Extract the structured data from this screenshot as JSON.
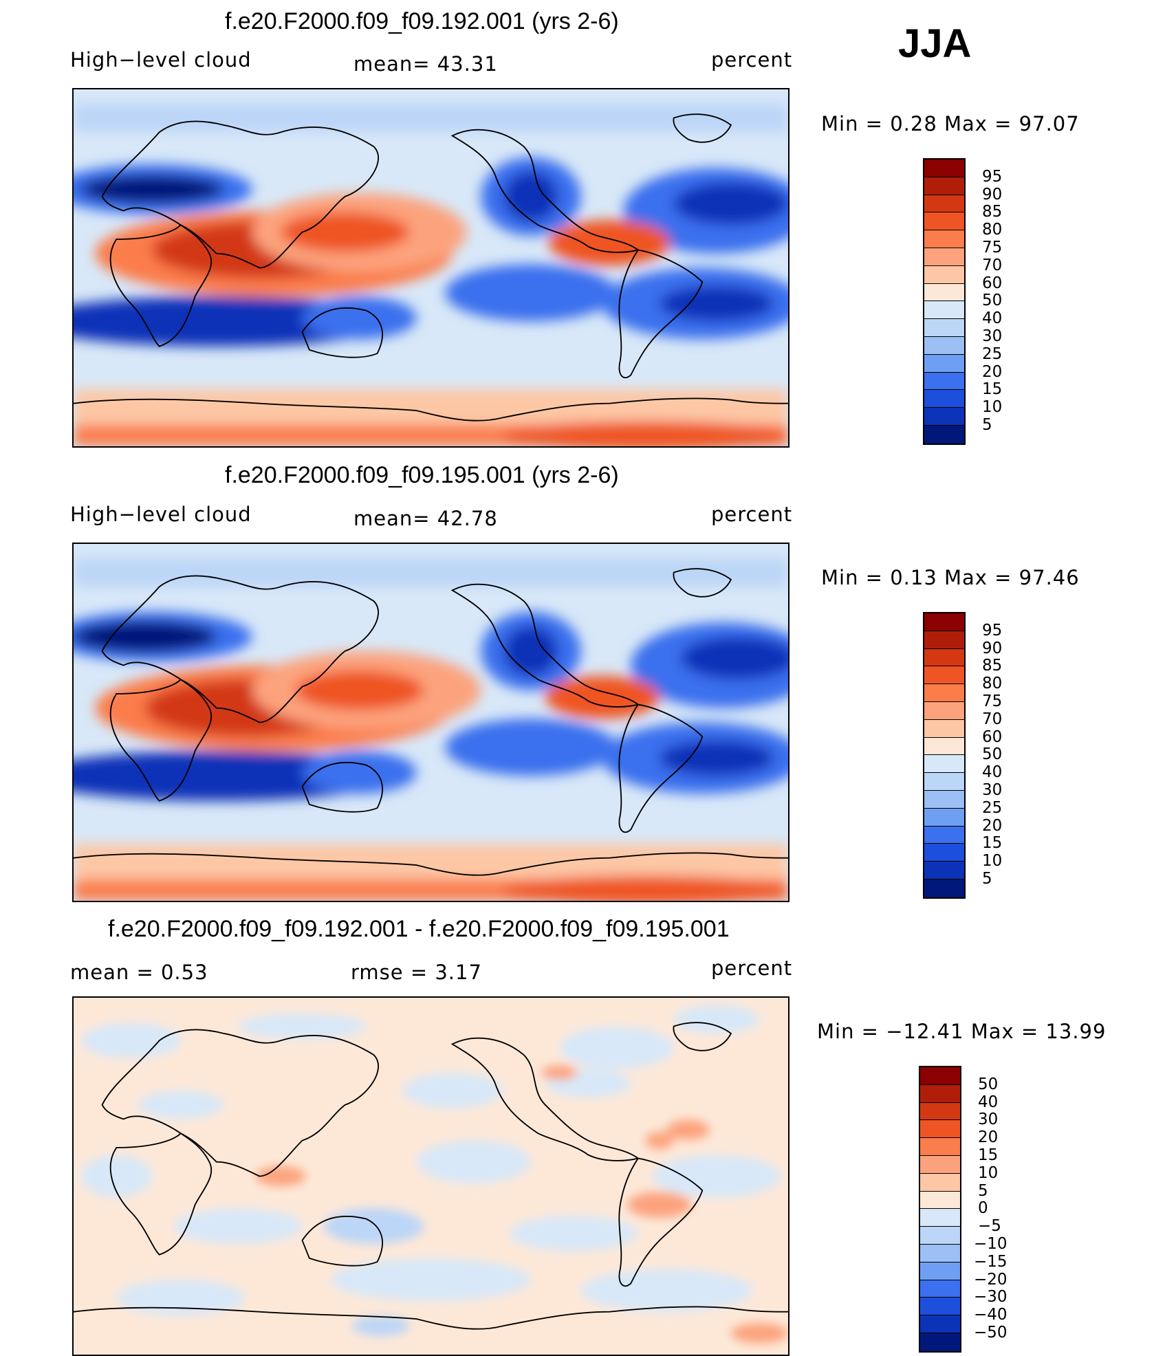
{
  "season": "JJA",
  "panels": [
    {
      "title": "f.e20.F2000.f09_f09.192.001 (yrs 2-6)",
      "left_label": "High−level cloud",
      "center_label": "mean=   43.31",
      "units": "percent",
      "minmax": "Min  =     0.28  Max  =    97.07",
      "palette": "abs"
    },
    {
      "title": "f.e20.F2000.f09_f09.195.001 (yrs 2-6)",
      "left_label": "High−level cloud",
      "center_label": "mean=   42.78",
      "units": "percent",
      "minmax": "Min  =     0.13  Max  =    97.46",
      "palette": "abs"
    },
    {
      "title": "f.e20.F2000.f09_f09.192.001 - f.e20.F2000.f09_f09.195.001",
      "left_label": "mean  =     0.53",
      "center_label": "rmse  =     3.17",
      "units": "percent",
      "minmax": "Min  = −12.41  Max  =    13.99",
      "palette": "diff"
    }
  ],
  "colorbars": {
    "abs": {
      "levels": [
        "95",
        "90",
        "85",
        "80",
        "75",
        "70",
        "60",
        "50",
        "40",
        "30",
        "25",
        "20",
        "15",
        "10",
        "5"
      ],
      "colors": [
        "#8b0000",
        "#b01e0a",
        "#d33812",
        "#ef5524",
        "#fb7d4b",
        "#fca37d",
        "#fdc7a6",
        "#fde8d8",
        "#d8e8f8",
        "#bcd6f7",
        "#9cbff5",
        "#6f9ff2",
        "#3b70ee",
        "#1d4fdd",
        "#0a33b8",
        "#00187a"
      ]
    },
    "diff": {
      "levels": [
        "50",
        "40",
        "30",
        "20",
        "15",
        "10",
        "5",
        "0",
        "−5",
        "−10",
        "−15",
        "−20",
        "−30",
        "−40",
        "−50"
      ],
      "colors": [
        "#8b0000",
        "#b01e0a",
        "#d33812",
        "#ef5524",
        "#fb7d4b",
        "#fca37d",
        "#fdc7a6",
        "#fde8d8",
        "#d8e8f8",
        "#bcd6f7",
        "#9cbff5",
        "#6f9ff2",
        "#3b70ee",
        "#1d4fdd",
        "#0a33b8",
        "#00187a"
      ]
    }
  }
}
